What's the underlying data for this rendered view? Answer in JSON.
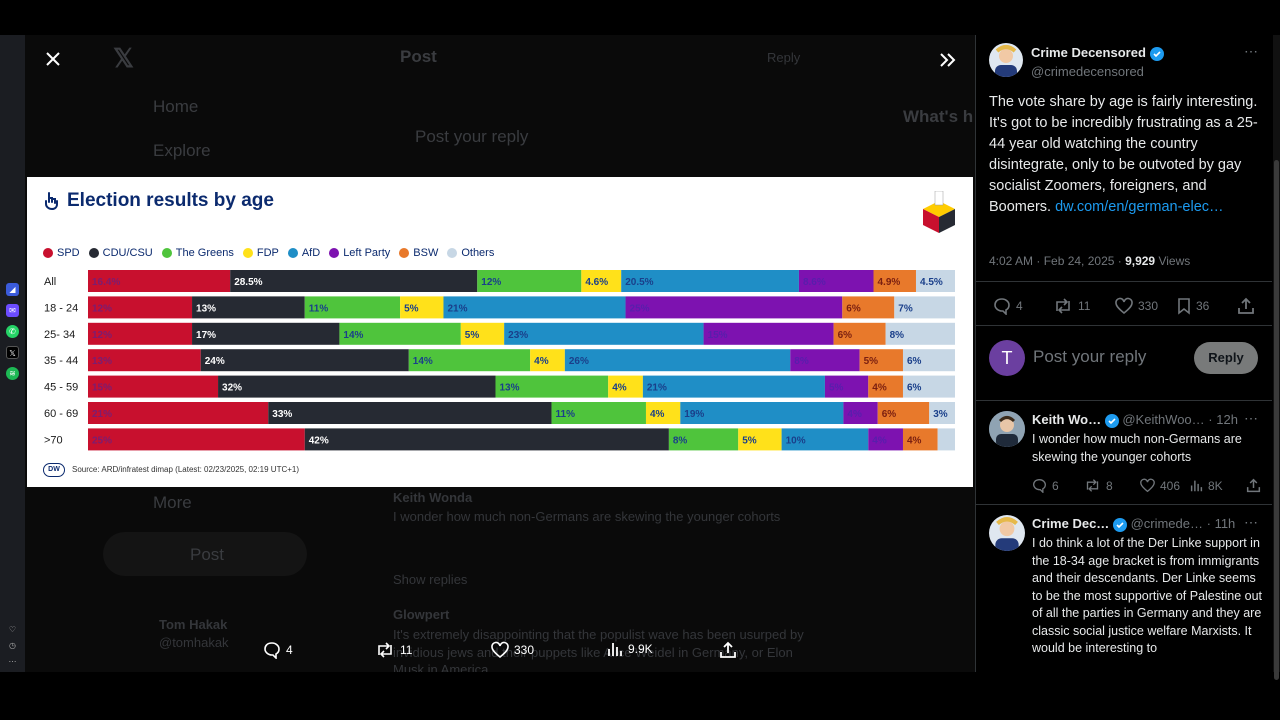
{
  "colors": {
    "SPD": "#c8102e",
    "CDU/CSU": "#262a33",
    "The Greens": "#4fc43c",
    "FDP": "#ffe11a",
    "AfD": "#1f8ec6",
    "Left Party": "#7d12b0",
    "BSW": "#e8792b",
    "Others": "#c7d7e5",
    "link": "#1d9bf0",
    "verified": "#1d9bf0"
  },
  "background": {
    "nav_home": "Home",
    "nav_explore": "Explore",
    "nav_more": "More",
    "post_button": "Post",
    "header_post": "Post",
    "header_reply": "Reply",
    "whats_happening": "What's h",
    "post_placeholder": "Post your reply",
    "reply_author": "Keith Wonda",
    "reply_text": "I wonder how much non-Germans are skewing the younger cohorts",
    "show_replies": "Show replies",
    "reply2_author": "Glowpert",
    "reply2_text": "It's extremely disappointing that the populist wave has been usurped by",
    "reply2_text2": "invidious jews and their puppets like Alice Weidel in Germany, or Elon",
    "reply2_text3": "Musk in America.",
    "account_name": "Tom Hakak",
    "account_handle": "@tomhakak"
  },
  "chart_data": {
    "type": "bar",
    "stacked": true,
    "orientation": "horizontal",
    "title": "Election results by age",
    "source": "Source: ARD/infratest dimap (Latest: 02/23/2025, 02:19 UTC+1)",
    "legend_position": "top-left",
    "categories": [
      "All",
      "18 - 24",
      "25- 34",
      "35 - 44",
      "45 - 59",
      "60 - 69",
      ">70"
    ],
    "series": [
      {
        "name": "SPD",
        "values": [
          16.4,
          12,
          12,
          13,
          15,
          21,
          25
        ],
        "labels": [
          "16.4%",
          "12%",
          "12%",
          "13%",
          "15%",
          "21%",
          "25%"
        ]
      },
      {
        "name": "CDU/CSU",
        "values": [
          28.5,
          13,
          17,
          24,
          32,
          33,
          42
        ],
        "labels": [
          "28.5%",
          "13%",
          "17%",
          "24%",
          "32%",
          "33%",
          "42%"
        ]
      },
      {
        "name": "The Greens",
        "values": [
          12,
          11,
          14,
          14,
          13,
          11,
          8
        ],
        "labels": [
          "12%",
          "11%",
          "14%",
          "14%",
          "13%",
          "11%",
          "8%"
        ]
      },
      {
        "name": "FDP",
        "values": [
          4.6,
          5,
          5,
          4,
          4,
          4,
          5
        ],
        "labels": [
          "4.6%",
          "5%",
          "5%",
          "4%",
          "4%",
          "4%",
          "5%"
        ]
      },
      {
        "name": "AfD",
        "values": [
          20.5,
          21,
          23,
          26,
          21,
          19,
          10
        ],
        "labels": [
          "20.5%",
          "21%",
          "23%",
          "26%",
          "21%",
          "19%",
          "10%"
        ]
      },
      {
        "name": "Left Party",
        "values": [
          8.6,
          25,
          15,
          8,
          5,
          4,
          4
        ],
        "labels": [
          "8.6%",
          "25%",
          "15%",
          "8%",
          "5%",
          "4%",
          "4%"
        ]
      },
      {
        "name": "BSW",
        "values": [
          4.9,
          6,
          6,
          5,
          4,
          6,
          4
        ],
        "labels": [
          "4.9%",
          "6%",
          "6%",
          "5%",
          "4%",
          "6%",
          "4%"
        ]
      },
      {
        "name": "Others",
        "values": [
          4.5,
          7,
          8,
          6,
          6,
          3,
          2
        ],
        "labels": [
          "4.5%",
          "7%",
          "8%",
          "6%",
          "6%",
          "3%",
          ""
        ]
      }
    ]
  },
  "modal_actions": {
    "replies": "4",
    "reposts": "11",
    "likes": "330",
    "views": "9.9K"
  },
  "tweet": {
    "author": "Crime Decensored",
    "handle": "@crimedecensored",
    "text": "The vote share by age is fairly interesting. It's got to be incredibly frustrating as a 25-44 year old watching the country disintegrate, only to be outvoted by gay socialist Zoomers, foreigners, and Boomers.",
    "link": "dw.com/en/german-elec…",
    "timestamp": "4:02 AM · Feb 24, 2025 · ",
    "views_count": "9,929",
    "views_label": " Views",
    "replies": "4",
    "reposts": "11",
    "likes": "330",
    "bookmarks": "36"
  },
  "reply_box": {
    "avatar_letter": "T",
    "placeholder": "Post your reply",
    "button": "Reply"
  },
  "replies": [
    {
      "author": "Keith Wo…",
      "handle": "@KeithWoo…",
      "time": "· 12h",
      "text": "I wonder how much non-Germans are skewing the younger cohorts",
      "replies": "6",
      "reposts": "8",
      "likes": "406",
      "views": "8K"
    },
    {
      "author": "Crime Dec…",
      "handle": "@crimede…",
      "time": "· 11h",
      "text": "I do think a lot of the Der Linke support in the 18-34 age bracket is from immigrants and their descendants. Der Linke seems to be the most supportive of Palestine out of all the parties in Germany and they are classic social justice welfare Marxists. It would be interesting to"
    }
  ]
}
